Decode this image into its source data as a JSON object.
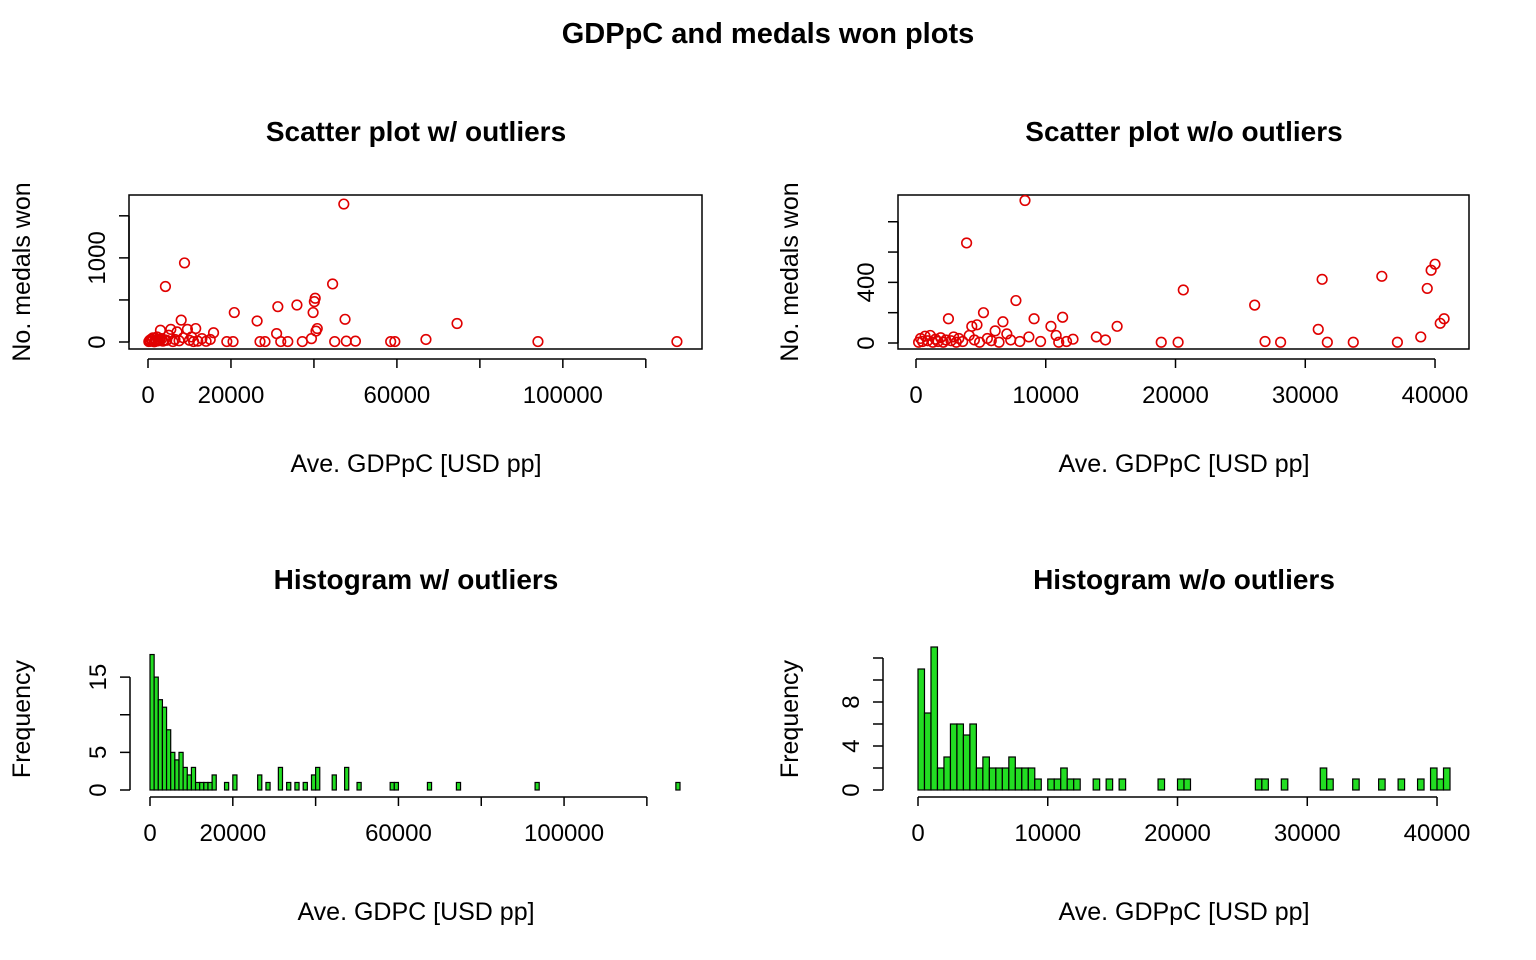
{
  "figure": {
    "title": "GDPpC and medals won plots"
  },
  "chart_data": [
    {
      "type": "scatter",
      "title": "Scatter plot w/ outliers",
      "xlabel": "Ave. GDPpC [USD pp]",
      "ylabel": "No. medals won",
      "xlim": [
        0,
        128000
      ],
      "ylim": [
        0,
        1700
      ],
      "xticks": [
        0,
        20000,
        40000,
        60000,
        80000,
        100000,
        120000
      ],
      "xtick_labels": [
        "0",
        "20000",
        "",
        "60000",
        "",
        "100000",
        ""
      ],
      "yticks": [
        0,
        500,
        1000,
        1500
      ],
      "ytick_labels": [
        "0",
        "",
        "1000",
        ""
      ],
      "marker_color": "#e00000",
      "points": [
        {
          "x": 200,
          "y": 5
        },
        {
          "x": 400,
          "y": 20
        },
        {
          "x": 600,
          "y": 8
        },
        {
          "x": 800,
          "y": 35
        },
        {
          "x": 1000,
          "y": 12
        },
        {
          "x": 1200,
          "y": 50
        },
        {
          "x": 1500,
          "y": 3
        },
        {
          "x": 1800,
          "y": 25
        },
        {
          "x": 2000,
          "y": 10
        },
        {
          "x": 2200,
          "y": 60
        },
        {
          "x": 2500,
          "y": 15
        },
        {
          "x": 2800,
          "y": 30
        },
        {
          "x": 3000,
          "y": 140
        },
        {
          "x": 3300,
          "y": 40
        },
        {
          "x": 3600,
          "y": 10
        },
        {
          "x": 4000,
          "y": 25
        },
        {
          "x": 4200,
          "y": 660
        },
        {
          "x": 4500,
          "y": 20
        },
        {
          "x": 5000,
          "y": 80
        },
        {
          "x": 5500,
          "y": 150
        },
        {
          "x": 6000,
          "y": 5
        },
        {
          "x": 6500,
          "y": 30
        },
        {
          "x": 7000,
          "y": 120
        },
        {
          "x": 7500,
          "y": 15
        },
        {
          "x": 8000,
          "y": 260
        },
        {
          "x": 8500,
          "y": 50
        },
        {
          "x": 8800,
          "y": 940
        },
        {
          "x": 9500,
          "y": 150
        },
        {
          "x": 10000,
          "y": 20
        },
        {
          "x": 10500,
          "y": 60
        },
        {
          "x": 11000,
          "y": 5
        },
        {
          "x": 11500,
          "y": 160
        },
        {
          "x": 12000,
          "y": 10
        },
        {
          "x": 13000,
          "y": 40
        },
        {
          "x": 14000,
          "y": 8
        },
        {
          "x": 15000,
          "y": 30
        },
        {
          "x": 15800,
          "y": 110
        },
        {
          "x": 19000,
          "y": 5
        },
        {
          "x": 20500,
          "y": 5
        },
        {
          "x": 20800,
          "y": 350
        },
        {
          "x": 26300,
          "y": 250
        },
        {
          "x": 27000,
          "y": 5
        },
        {
          "x": 28200,
          "y": 5
        },
        {
          "x": 31000,
          "y": 100
        },
        {
          "x": 31300,
          "y": 420
        },
        {
          "x": 32000,
          "y": 5
        },
        {
          "x": 33700,
          "y": 5
        },
        {
          "x": 35900,
          "y": 440
        },
        {
          "x": 37200,
          "y": 5
        },
        {
          "x": 39400,
          "y": 40
        },
        {
          "x": 39800,
          "y": 350
        },
        {
          "x": 40100,
          "y": 480
        },
        {
          "x": 40300,
          "y": 520
        },
        {
          "x": 40500,
          "y": 130
        },
        {
          "x": 40800,
          "y": 160
        },
        {
          "x": 44500,
          "y": 690
        },
        {
          "x": 45000,
          "y": 5
        },
        {
          "x": 47200,
          "y": 1640
        },
        {
          "x": 47500,
          "y": 270
        },
        {
          "x": 47800,
          "y": 10
        },
        {
          "x": 50000,
          "y": 10
        },
        {
          "x": 58500,
          "y": 5
        },
        {
          "x": 59500,
          "y": 5
        },
        {
          "x": 67000,
          "y": 30
        },
        {
          "x": 74500,
          "y": 220
        },
        {
          "x": 94000,
          "y": 5
        },
        {
          "x": 127500,
          "y": 5
        }
      ]
    },
    {
      "type": "scatter",
      "title": "Scatter plot w/o outliers",
      "xlabel": "Ave. GDPpC [USD pp]",
      "ylabel": "No. medals won",
      "xlim": [
        0,
        41000
      ],
      "ylim": [
        0,
        950
      ],
      "xticks": [
        0,
        10000,
        20000,
        30000,
        40000
      ],
      "xtick_labels": [
        "0",
        "10000",
        "20000",
        "30000",
        "40000"
      ],
      "yticks": [
        0,
        200,
        400,
        600,
        800
      ],
      "ytick_labels": [
        "0",
        "",
        "400",
        "",
        ""
      ],
      "marker_color": "#e00000",
      "points": [
        {
          "x": 200,
          "y": 5
        },
        {
          "x": 350,
          "y": 30
        },
        {
          "x": 500,
          "y": 10
        },
        {
          "x": 700,
          "y": 45
        },
        {
          "x": 900,
          "y": 15
        },
        {
          "x": 1100,
          "y": 50
        },
        {
          "x": 1300,
          "y": 5
        },
        {
          "x": 1500,
          "y": 25
        },
        {
          "x": 1700,
          "y": 10
        },
        {
          "x": 1900,
          "y": 35
        },
        {
          "x": 2100,
          "y": 5
        },
        {
          "x": 2300,
          "y": 20
        },
        {
          "x": 2500,
          "y": 160
        },
        {
          "x": 2700,
          "y": 15
        },
        {
          "x": 2900,
          "y": 40
        },
        {
          "x": 3100,
          "y": 5
        },
        {
          "x": 3300,
          "y": 30
        },
        {
          "x": 3600,
          "y": 10
        },
        {
          "x": 3900,
          "y": 660
        },
        {
          "x": 4100,
          "y": 50
        },
        {
          "x": 4300,
          "y": 110
        },
        {
          "x": 4500,
          "y": 20
        },
        {
          "x": 4700,
          "y": 120
        },
        {
          "x": 4900,
          "y": 5
        },
        {
          "x": 5200,
          "y": 200
        },
        {
          "x": 5500,
          "y": 30
        },
        {
          "x": 5800,
          "y": 15
        },
        {
          "x": 6100,
          "y": 80
        },
        {
          "x": 6400,
          "y": 5
        },
        {
          "x": 6700,
          "y": 140
        },
        {
          "x": 7000,
          "y": 60
        },
        {
          "x": 7300,
          "y": 20
        },
        {
          "x": 7700,
          "y": 280
        },
        {
          "x": 8000,
          "y": 10
        },
        {
          "x": 8400,
          "y": 940
        },
        {
          "x": 8700,
          "y": 40
        },
        {
          "x": 9100,
          "y": 160
        },
        {
          "x": 9600,
          "y": 10
        },
        {
          "x": 10400,
          "y": 110
        },
        {
          "x": 10800,
          "y": 50
        },
        {
          "x": 11000,
          "y": 5
        },
        {
          "x": 11300,
          "y": 170
        },
        {
          "x": 11600,
          "y": 10
        },
        {
          "x": 12100,
          "y": 25
        },
        {
          "x": 13900,
          "y": 40
        },
        {
          "x": 14600,
          "y": 20
        },
        {
          "x": 15500,
          "y": 110
        },
        {
          "x": 18900,
          "y": 5
        },
        {
          "x": 20200,
          "y": 5
        },
        {
          "x": 20600,
          "y": 350
        },
        {
          "x": 26100,
          "y": 250
        },
        {
          "x": 26900,
          "y": 10
        },
        {
          "x": 28100,
          "y": 5
        },
        {
          "x": 31000,
          "y": 90
        },
        {
          "x": 31300,
          "y": 420
        },
        {
          "x": 31700,
          "y": 5
        },
        {
          "x": 33700,
          "y": 5
        },
        {
          "x": 35900,
          "y": 440
        },
        {
          "x": 37100,
          "y": 5
        },
        {
          "x": 38900,
          "y": 40
        },
        {
          "x": 39400,
          "y": 360
        },
        {
          "x": 39700,
          "y": 480
        },
        {
          "x": 40000,
          "y": 520
        },
        {
          "x": 40400,
          "y": 130
        },
        {
          "x": 40700,
          "y": 160
        }
      ]
    },
    {
      "type": "bar",
      "title": "Histogram w/ outliers",
      "xlabel": "Ave. GDPC [USD pp]",
      "ylabel": "Frequency",
      "xlim": [
        0,
        128000
      ],
      "ylim": [
        0,
        19
      ],
      "bin_width": 1000,
      "xticks": [
        0,
        20000,
        40000,
        60000,
        80000,
        100000,
        120000
      ],
      "xtick_labels": [
        "0",
        "20000",
        "",
        "60000",
        "",
        "100000",
        ""
      ],
      "yticks": [
        0,
        5,
        10,
        15
      ],
      "ytick_labels": [
        "0",
        "5",
        "",
        "15"
      ],
      "bar_color": "#22dd22",
      "bins": [
        {
          "x": 0,
          "y": 18
        },
        {
          "x": 1000,
          "y": 15
        },
        {
          "x": 2000,
          "y": 12
        },
        {
          "x": 3000,
          "y": 11
        },
        {
          "x": 4000,
          "y": 8
        },
        {
          "x": 5000,
          "y": 5
        },
        {
          "x": 6000,
          "y": 4
        },
        {
          "x": 7000,
          "y": 5
        },
        {
          "x": 8000,
          "y": 3
        },
        {
          "x": 9000,
          "y": 2
        },
        {
          "x": 10000,
          "y": 3
        },
        {
          "x": 11000,
          "y": 1
        },
        {
          "x": 12000,
          "y": 1
        },
        {
          "x": 13000,
          "y": 1
        },
        {
          "x": 14000,
          "y": 1
        },
        {
          "x": 15000,
          "y": 2
        },
        {
          "x": 18000,
          "y": 1
        },
        {
          "x": 20000,
          "y": 2
        },
        {
          "x": 26000,
          "y": 2
        },
        {
          "x": 28000,
          "y": 1
        },
        {
          "x": 31000,
          "y": 3
        },
        {
          "x": 33000,
          "y": 1
        },
        {
          "x": 35000,
          "y": 1
        },
        {
          "x": 37000,
          "y": 1
        },
        {
          "x": 39000,
          "y": 2
        },
        {
          "x": 40000,
          "y": 3
        },
        {
          "x": 44000,
          "y": 2
        },
        {
          "x": 47000,
          "y": 3
        },
        {
          "x": 50000,
          "y": 1
        },
        {
          "x": 58000,
          "y": 1
        },
        {
          "x": 59000,
          "y": 1
        },
        {
          "x": 67000,
          "y": 1
        },
        {
          "x": 74000,
          "y": 1
        },
        {
          "x": 93000,
          "y": 1
        },
        {
          "x": 127000,
          "y": 1
        }
      ]
    },
    {
      "type": "bar",
      "title": "Histogram w/o outliers",
      "xlabel": "Ave. GDPpC [USD pp]",
      "ylabel": "Frequency",
      "xlim": [
        0,
        41000
      ],
      "ylim": [
        0,
        13
      ],
      "bin_width": 500,
      "xticks": [
        0,
        10000,
        20000,
        30000,
        40000
      ],
      "xtick_labels": [
        "0",
        "10000",
        "20000",
        "30000",
        "40000"
      ],
      "yticks": [
        0,
        2,
        4,
        6,
        8,
        10,
        12
      ],
      "ytick_labels": [
        "0",
        "",
        "4",
        "",
        "8",
        "",
        ""
      ],
      "bar_color": "#22dd22",
      "bins": [
        {
          "x": 0,
          "y": 11
        },
        {
          "x": 500,
          "y": 7
        },
        {
          "x": 1000,
          "y": 13
        },
        {
          "x": 1500,
          "y": 2
        },
        {
          "x": 2000,
          "y": 3
        },
        {
          "x": 2500,
          "y": 6
        },
        {
          "x": 3000,
          "y": 6
        },
        {
          "x": 3500,
          "y": 5
        },
        {
          "x": 4000,
          "y": 6
        },
        {
          "x": 4500,
          "y": 2
        },
        {
          "x": 5000,
          "y": 3
        },
        {
          "x": 5500,
          "y": 2
        },
        {
          "x": 6000,
          "y": 2
        },
        {
          "x": 6500,
          "y": 2
        },
        {
          "x": 7000,
          "y": 3
        },
        {
          "x": 7500,
          "y": 2
        },
        {
          "x": 8000,
          "y": 2
        },
        {
          "x": 8500,
          "y": 2
        },
        {
          "x": 9000,
          "y": 1
        },
        {
          "x": 10000,
          "y": 1
        },
        {
          "x": 10500,
          "y": 1
        },
        {
          "x": 11000,
          "y": 2
        },
        {
          "x": 11500,
          "y": 1
        },
        {
          "x": 12000,
          "y": 1
        },
        {
          "x": 13500,
          "y": 1
        },
        {
          "x": 14500,
          "y": 1
        },
        {
          "x": 15500,
          "y": 1
        },
        {
          "x": 18500,
          "y": 1
        },
        {
          "x": 20000,
          "y": 1
        },
        {
          "x": 20500,
          "y": 1
        },
        {
          "x": 26000,
          "y": 1
        },
        {
          "x": 26500,
          "y": 1
        },
        {
          "x": 28000,
          "y": 1
        },
        {
          "x": 31000,
          "y": 2
        },
        {
          "x": 31500,
          "y": 1
        },
        {
          "x": 33500,
          "y": 1
        },
        {
          "x": 35500,
          "y": 1
        },
        {
          "x": 37000,
          "y": 1
        },
        {
          "x": 38500,
          "y": 1
        },
        {
          "x": 39500,
          "y": 2
        },
        {
          "x": 40000,
          "y": 1
        },
        {
          "x": 40500,
          "y": 2
        }
      ]
    }
  ]
}
